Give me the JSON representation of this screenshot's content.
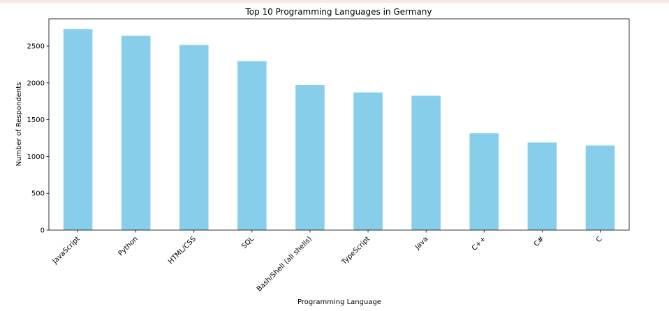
{
  "chart_data": {
    "type": "bar",
    "title": "Top 10 Programming Languages in Germany",
    "xlabel": "Programming Language",
    "ylabel": "Number of Respondents",
    "categories": [
      "JavaScript",
      "Python",
      "HTML/CSS",
      "SQL",
      "Bash/Shell (all shells)",
      "TypeScript",
      "Java",
      "C++",
      "C#",
      "C"
    ],
    "values": [
      2730,
      2640,
      2515,
      2295,
      1970,
      1870,
      1825,
      1315,
      1190,
      1150
    ],
    "ylim": [
      0,
      2870
    ],
    "yticks": [
      0,
      500,
      1000,
      1500,
      2000,
      2500
    ],
    "grid": false,
    "legend": "none",
    "bar_color": "#87ceeb"
  }
}
